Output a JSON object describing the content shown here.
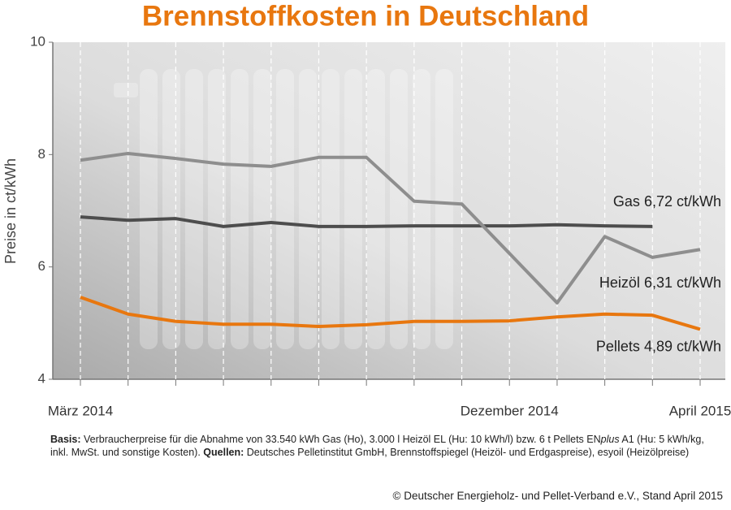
{
  "chart_data": {
    "type": "line",
    "title": "Brennstoffkosten in Deutschland",
    "ylabel": "Preise in ct/kWh",
    "categories": [
      "März 2014",
      null,
      null,
      null,
      null,
      null,
      null,
      null,
      null,
      "Dezember 2014",
      null,
      null,
      null,
      "April 2015"
    ],
    "ylim": [
      4,
      10
    ],
    "yticks": [
      4,
      6,
      8,
      10
    ],
    "grid": false,
    "series": [
      {
        "name": "Gas",
        "color": "#4d4d4d",
        "values": [
          6.89,
          6.83,
          6.86,
          6.72,
          6.79,
          6.72,
          6.72,
          6.73,
          6.73,
          6.73,
          6.75,
          6.73,
          6.72,
          null
        ],
        "value_labels": [
          null,
          null,
          null,
          null,
          null,
          null,
          null,
          null,
          null,
          null,
          null,
          null,
          "6,72 ct/kWh",
          null
        ]
      },
      {
        "name": "Heizöl",
        "color": "#8e8e8e",
        "values": [
          7.9,
          8.02,
          7.93,
          7.83,
          7.79,
          7.95,
          7.95,
          7.17,
          7.12,
          6.24,
          5.36,
          6.54,
          6.17,
          6.31
        ],
        "value_labels": [
          null,
          null,
          null,
          null,
          null,
          null,
          null,
          null,
          null,
          null,
          null,
          null,
          null,
          "6,31 ct/kWh"
        ]
      },
      {
        "name": "Pellets",
        "color": "#e8770f",
        "values": [
          5.46,
          5.16,
          5.03,
          4.98,
          4.98,
          4.94,
          4.97,
          5.03,
          5.03,
          5.04,
          5.11,
          5.16,
          5.14,
          4.89
        ],
        "value_labels": [
          null,
          null,
          null,
          null,
          null,
          null,
          null,
          null,
          null,
          null,
          null,
          null,
          null,
          "4,89 ct/kWh"
        ]
      }
    ],
    "notes": [
      {
        "text": "Basis:",
        "bold": true
      },
      {
        "text": " Verbraucherpreise für die Abnahme von 33.540 kWh Gas (Ho), 3.000 l Heizöl EL (Hu: 10 kWh/l) bzw. 6 t Pellets EN"
      },
      {
        "text": "plus",
        "italic": true
      },
      {
        "text": " A1 (Hu: 5 kWh/kg, inkl. MwSt. und sonstige Kosten). "
      },
      {
        "text": "Quellen:",
        "bold": true
      },
      {
        "text": " Deutsches Pelletinstitut GmbH, Brennstoffspiegel (Heizöl- und Erdgaspreise), esyoil (Heizölpreise)"
      }
    ],
    "copyright": "© Deutscher Energieholz- und Pellet-Verband e.V., Stand April 2015"
  }
}
